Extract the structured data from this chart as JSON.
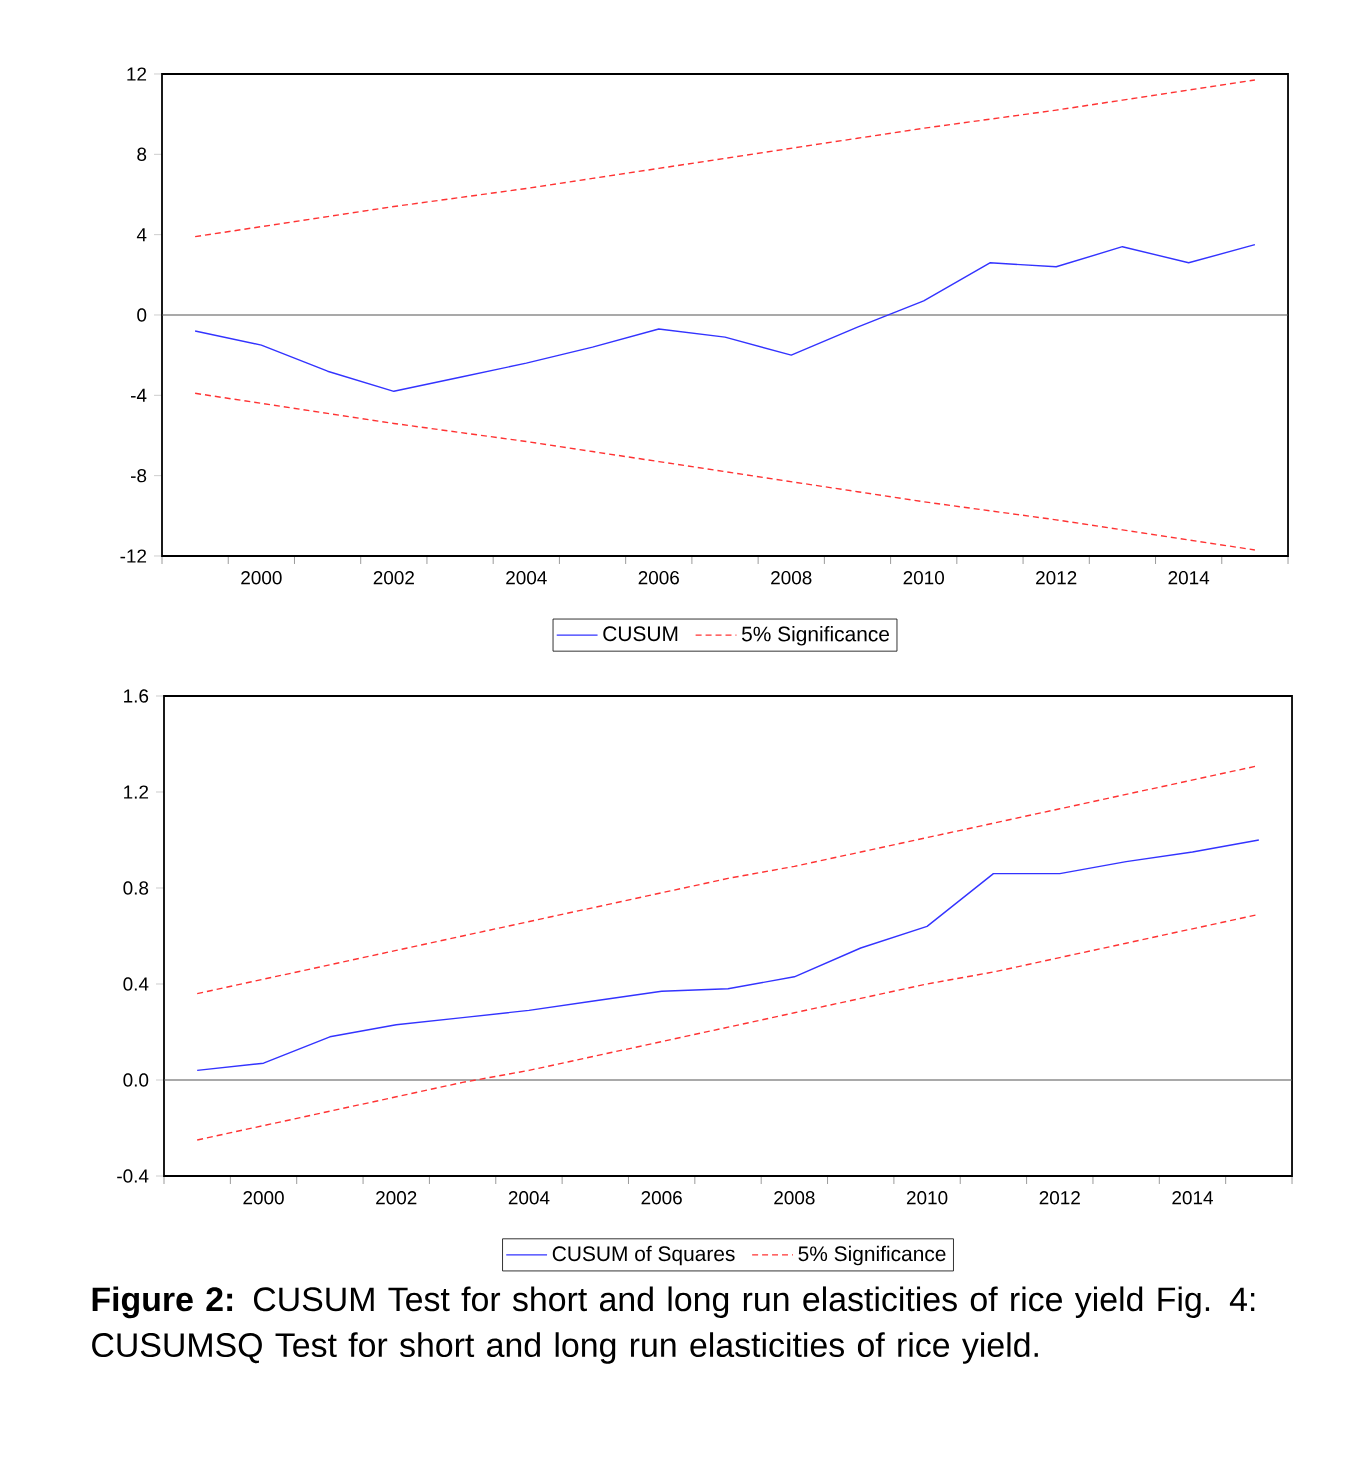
{
  "chart_data": [
    {
      "type": "line",
      "x": [
        1999,
        2000,
        2001,
        2002,
        2003,
        2004,
        2005,
        2006,
        2007,
        2008,
        2009,
        2010,
        2011,
        2012,
        2013,
        2014,
        2015
      ],
      "series": [
        {
          "name": "CUSUM",
          "color": "#3333ff",
          "line_style": "solid",
          "values": [
            -0.8,
            -1.5,
            -2.8,
            -3.8,
            -3.1,
            -2.4,
            -1.6,
            -0.7,
            -1.1,
            -2.0,
            -0.6,
            0.7,
            2.6,
            2.4,
            3.4,
            2.6,
            3.5
          ]
        },
        {
          "name": "5% Significance",
          "color": "#ff3333",
          "line_style": "dashed",
          "values": [
            3.9,
            4.4,
            4.9,
            5.4,
            5.85,
            6.3,
            6.8,
            7.3,
            7.8,
            8.3,
            8.8,
            9.3,
            9.75,
            10.2,
            10.7,
            11.2,
            11.7
          ]
        },
        {
          "color": "#ff3333",
          "line_style": "dashed",
          "values": [
            -3.9,
            -4.4,
            -4.9,
            -5.4,
            -5.85,
            -6.3,
            -6.8,
            -7.3,
            -7.8,
            -8.3,
            -8.8,
            -9.3,
            -9.75,
            -10.2,
            -10.7,
            -11.2,
            -11.7
          ]
        }
      ],
      "xlim": [
        1998.5,
        2015.5
      ],
      "xticks": [
        {
          "value": 1998.5,
          "label": null
        },
        {
          "value": 1999.5,
          "label": null
        },
        2000,
        {
          "value": 2000.5,
          "label": null
        },
        {
          "value": 2001.5,
          "label": null
        },
        2002,
        {
          "value": 2002.5,
          "label": null
        },
        {
          "value": 2003.5,
          "label": null
        },
        2004,
        {
          "value": 2004.5,
          "label": null
        },
        {
          "value": 2005.5,
          "label": null
        },
        2006,
        {
          "value": 2006.5,
          "label": null
        },
        {
          "value": 2007.5,
          "label": null
        },
        2008,
        {
          "value": 2008.5,
          "label": null
        },
        {
          "value": 2009.5,
          "label": null
        },
        2010,
        {
          "value": 2010.5,
          "label": null
        },
        {
          "value": 2011.5,
          "label": null
        },
        2012,
        {
          "value": 2012.5,
          "label": null
        },
        {
          "value": 2013.5,
          "label": null
        },
        2014,
        {
          "value": 2014.5,
          "label": null
        },
        {
          "value": 2015.5,
          "label": null
        }
      ],
      "ylim": [
        -12,
        12
      ],
      "yticks": [
        -12,
        -8,
        -4,
        0,
        4,
        8,
        12
      ],
      "ref_lines": [
        {
          "axis": "y",
          "value": 0,
          "color": "#555555"
        }
      ],
      "legend": "bottom"
    },
    {
      "type": "line",
      "x": [
        1999,
        2000,
        2001,
        2002,
        2003,
        2004,
        2005,
        2006,
        2007,
        2008,
        2009,
        2010,
        2011,
        2012,
        2013,
        2014,
        2015
      ],
      "series": [
        {
          "name": "CUSUM of Squares",
          "color": "#3333ff",
          "line_style": "solid",
          "values": [
            0.04,
            0.07,
            0.18,
            0.23,
            0.26,
            0.29,
            0.33,
            0.37,
            0.38,
            0.43,
            0.55,
            0.64,
            0.86,
            0.86,
            0.91,
            0.95,
            1.0
          ]
        },
        {
          "name": "5% Significance",
          "color": "#ff3333",
          "line_style": "dashed",
          "values": [
            0.36,
            0.42,
            0.48,
            0.54,
            0.6,
            0.66,
            0.72,
            0.78,
            0.84,
            0.89,
            0.95,
            1.01,
            1.07,
            1.13,
            1.19,
            1.25,
            1.31
          ]
        },
        {
          "color": "#ff3333",
          "line_style": "dashed",
          "values": [
            -0.25,
            -0.19,
            -0.13,
            -0.07,
            -0.01,
            0.04,
            0.1,
            0.16,
            0.22,
            0.28,
            0.34,
            0.4,
            0.45,
            0.51,
            0.57,
            0.63,
            0.69
          ]
        }
      ],
      "xlim": [
        1998.5,
        2015.5
      ],
      "xticks": [
        {
          "value": 1998.5,
          "label": null
        },
        {
          "value": 1999.5,
          "label": null
        },
        2000,
        {
          "value": 2000.5,
          "label": null
        },
        {
          "value": 2001.5,
          "label": null
        },
        2002,
        {
          "value": 2002.5,
          "label": null
        },
        {
          "value": 2003.5,
          "label": null
        },
        2004,
        {
          "value": 2004.5,
          "label": null
        },
        {
          "value": 2005.5,
          "label": null
        },
        2006,
        {
          "value": 2006.5,
          "label": null
        },
        {
          "value": 2007.5,
          "label": null
        },
        2008,
        {
          "value": 2008.5,
          "label": null
        },
        {
          "value": 2009.5,
          "label": null
        },
        2010,
        {
          "value": 2010.5,
          "label": null
        },
        {
          "value": 2011.5,
          "label": null
        },
        2012,
        {
          "value": 2012.5,
          "label": null
        },
        {
          "value": 2013.5,
          "label": null
        },
        2014,
        {
          "value": 2014.5,
          "label": null
        },
        {
          "value": 2015.5,
          "label": null
        }
      ],
      "ylim": [
        -0.4,
        1.6
      ],
      "yticks": [
        -0.4,
        {
          "value": 0,
          "label": "0.0"
        },
        0.4,
        0.8,
        1.2,
        1.6
      ],
      "ref_lines": [
        {
          "axis": "y",
          "value": 0,
          "color": "#555555"
        }
      ],
      "legend": "bottom",
      "annotations": [
        "**Figure 2:** CUSUM Test for short and long run elasticities of rice yield Fig. 4: CUSUMSQ Test for short and long run elasticities of rice yield."
      ]
    }
  ]
}
